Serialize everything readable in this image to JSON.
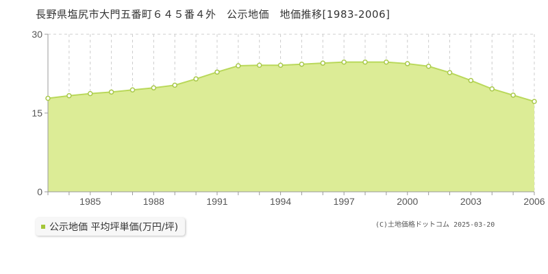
{
  "title": "長野県塩尻市大門五番町６４５番４外　公示地価　地価推移[1983-2006]",
  "legend": {
    "label": "公示地価 平均坪単価(万円/坪)"
  },
  "copyright": "(C)土地価格ドットコム 2025-03-20",
  "colors": {
    "fill": "#dcec96",
    "line": "#b9d85a",
    "marker_stroke": "#a8c84a",
    "grid": "#cccccc",
    "axis": "#999999"
  },
  "chart_data": {
    "type": "area",
    "x": [
      1983,
      1984,
      1985,
      1986,
      1987,
      1988,
      1989,
      1990,
      1991,
      1992,
      1993,
      1994,
      1995,
      1996,
      1997,
      1998,
      1999,
      2000,
      2001,
      2002,
      2003,
      2004,
      2005,
      2006
    ],
    "series": [
      {
        "values": [
          17.8,
          18.3,
          18.7,
          19.0,
          19.4,
          19.8,
          20.3,
          21.5,
          22.8,
          24.0,
          24.1,
          24.1,
          24.3,
          24.5,
          24.7,
          24.7,
          24.7,
          24.4,
          23.9,
          22.7,
          21.2,
          19.6,
          18.4,
          17.2
        ]
      }
    ],
    "xticks": [
      "1985",
      "1988",
      "1991",
      "1994",
      "1997",
      "2000",
      "2003",
      "2006"
    ],
    "yticks": [
      "0",
      "15",
      "30"
    ],
    "ylim": [
      0,
      30
    ],
    "xlim": [
      1983,
      2006
    ],
    "grid": true,
    "legend_position": "bottom-left"
  }
}
